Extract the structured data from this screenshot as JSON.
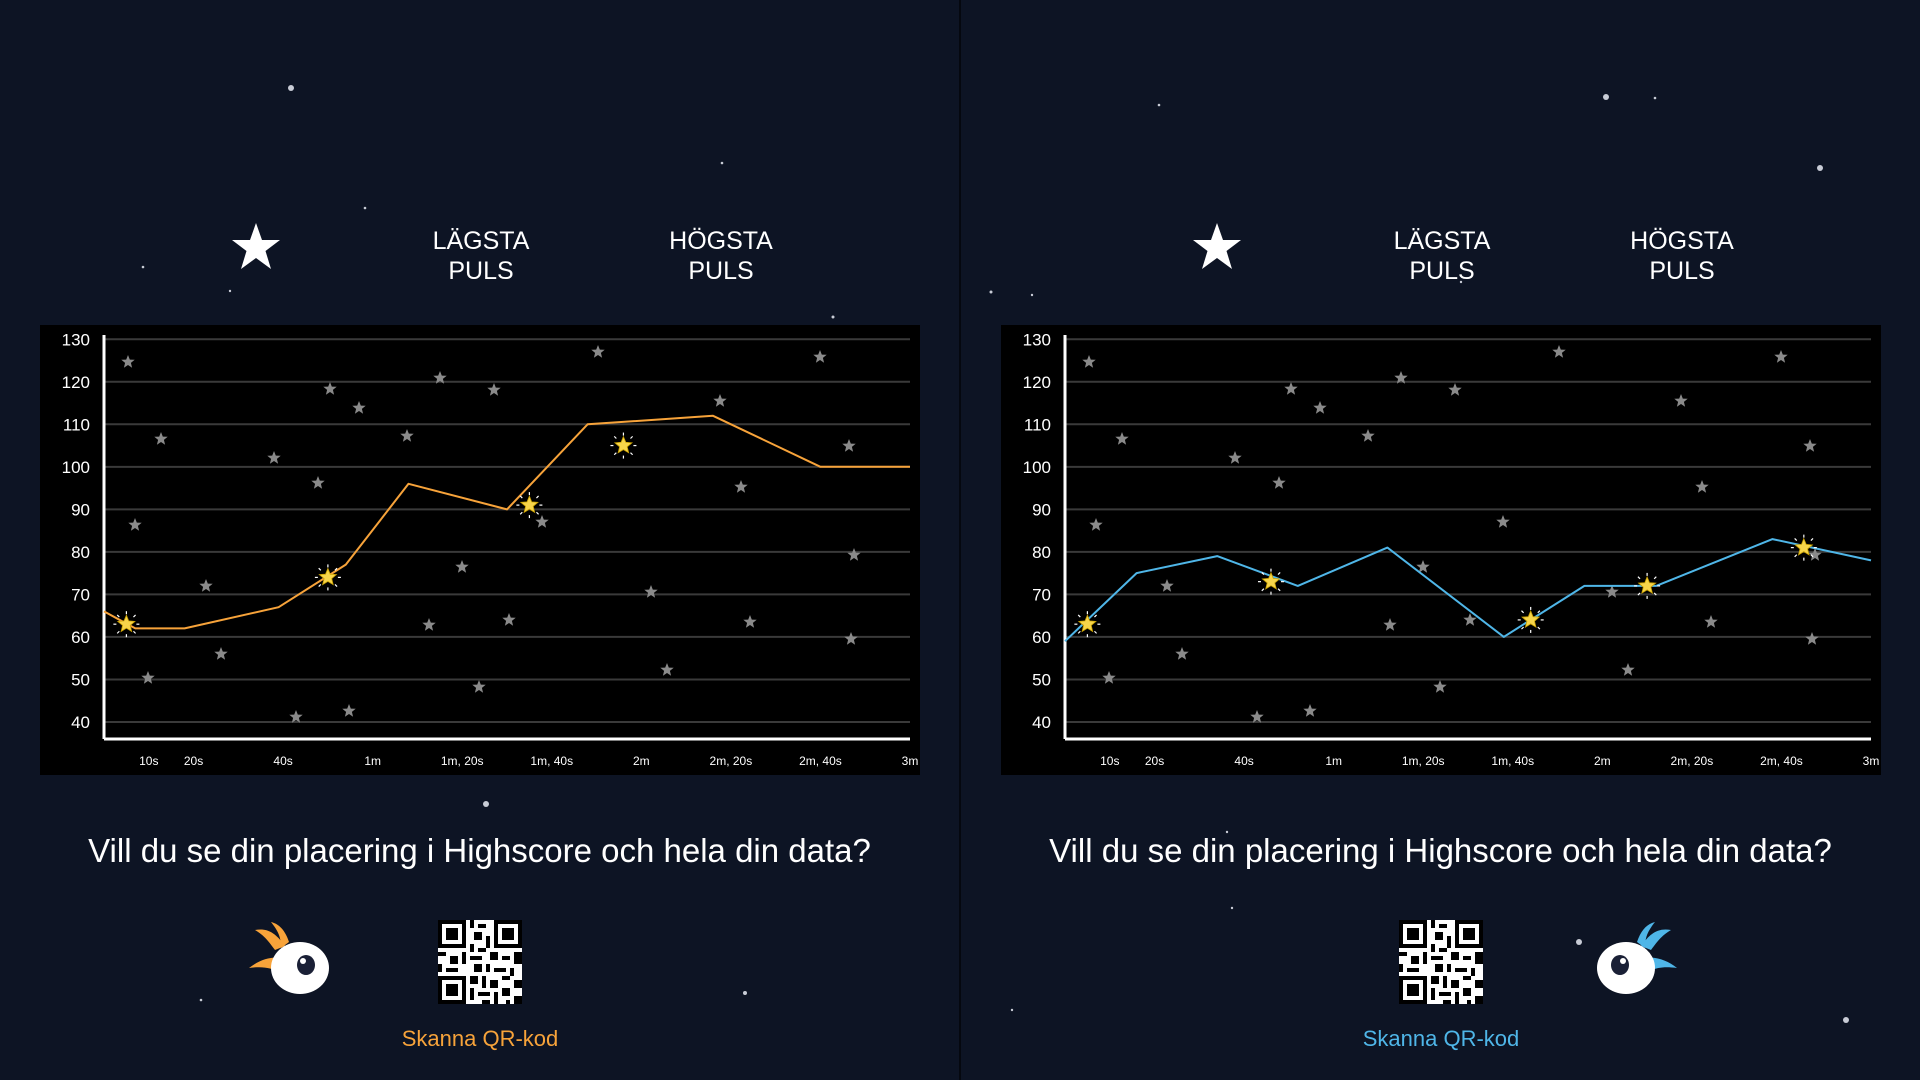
{
  "colors": {
    "background": "#0d1424",
    "chart_bg": "#000000",
    "player1_accent": "#f7a33a",
    "player2_accent": "#4fb6e8",
    "marker_star": "#f7d54a",
    "bg_star": "#8a8a8a"
  },
  "header": {
    "star_icon": "white-star-icon",
    "lowest_line1": "LÄGSTA",
    "lowest_line2": "PULS",
    "highest_line1": "HÖGSTA",
    "highest_line2": "PULS"
  },
  "question": "Vill du se din placering i Highscore och hela din data?",
  "scan_label": "Skanna QR-kod",
  "chart_data": [
    {
      "type": "line",
      "player": "left",
      "x_unit": "seconds",
      "x_tick_values": [
        10,
        20,
        40,
        60,
        80,
        100,
        120,
        140,
        160,
        180
      ],
      "x_tick_labels": [
        "10s",
        "20s",
        "40s",
        "1m",
        "1m, 20s",
        "1m, 40s",
        "2m",
        "2m, 20s",
        "2m, 40s",
        "3m"
      ],
      "y_ticks": [
        40,
        50,
        60,
        70,
        80,
        90,
        100,
        110,
        120,
        130
      ],
      "xlim": [
        0,
        180
      ],
      "ylim": [
        36,
        131
      ],
      "grid": true,
      "series": [
        {
          "color": "#f7a33a",
          "points": [
            [
              0,
              66
            ],
            [
              7,
              62
            ],
            [
              18,
              62
            ],
            [
              39,
              67
            ],
            [
              54,
              77
            ],
            [
              68,
              96
            ],
            [
              90,
              90
            ],
            [
              108,
              110
            ],
            [
              136,
              112
            ],
            [
              160,
              100
            ],
            [
              180,
              100
            ]
          ]
        }
      ],
      "markers": [
        [
          5,
          63
        ],
        [
          50,
          74
        ],
        [
          95,
          91
        ],
        [
          116,
          105
        ]
      ]
    },
    {
      "type": "line",
      "player": "right",
      "x_unit": "seconds",
      "x_tick_values": [
        10,
        20,
        40,
        60,
        80,
        100,
        120,
        140,
        160,
        180
      ],
      "x_tick_labels": [
        "10s",
        "20s",
        "40s",
        "1m",
        "1m, 20s",
        "1m, 40s",
        "2m",
        "2m, 20s",
        "2m, 40s",
        "3m"
      ],
      "y_ticks": [
        40,
        50,
        60,
        70,
        80,
        90,
        100,
        110,
        120,
        130
      ],
      "xlim": [
        0,
        180
      ],
      "ylim": [
        36,
        131
      ],
      "grid": true,
      "series": [
        {
          "color": "#4fb6e8",
          "points": [
            [
              0,
              59
            ],
            [
              16,
              75
            ],
            [
              34,
              79
            ],
            [
              52,
              72
            ],
            [
              72,
              81
            ],
            [
              98,
              60
            ],
            [
              116,
              72
            ],
            [
              132,
              72
            ],
            [
              158,
              83
            ],
            [
              180,
              78
            ]
          ]
        }
      ],
      "markers": [
        [
          5,
          63
        ],
        [
          46,
          73
        ],
        [
          104,
          64
        ],
        [
          130,
          72
        ],
        [
          165,
          81
        ]
      ]
    }
  ]
}
